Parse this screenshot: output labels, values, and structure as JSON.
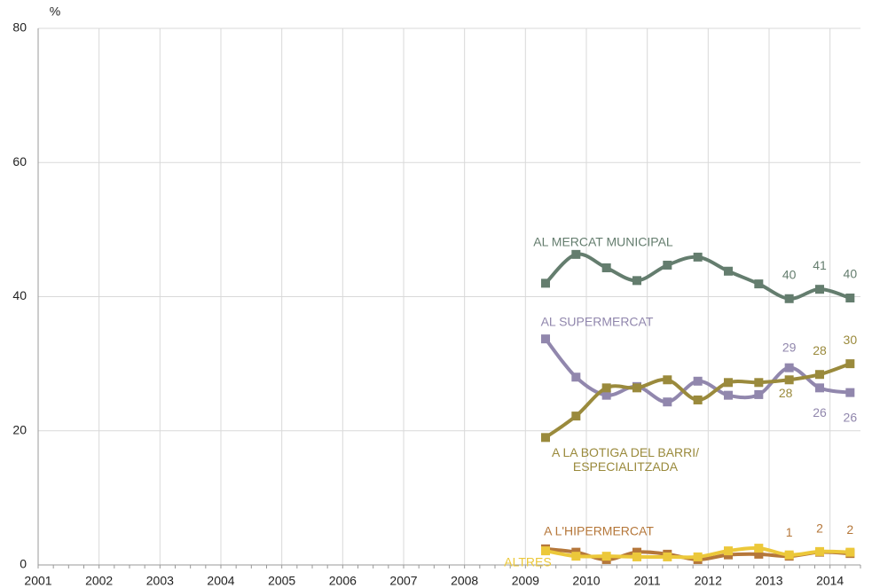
{
  "chart_data": {
    "type": "line",
    "y_label": "%",
    "x": [
      2009.33,
      2009.83,
      2010.33,
      2010.83,
      2011.33,
      2011.83,
      2012.33,
      2012.83,
      2013.33,
      2013.83,
      2014.33
    ],
    "xlim": [
      2001,
      2014.5
    ],
    "xticks": [
      2001,
      2002,
      2003,
      2004,
      2005,
      2006,
      2007,
      2008,
      2009,
      2010,
      2011,
      2012,
      2013,
      2014
    ],
    "ylim": [
      0,
      80
    ],
    "yticks": [
      0,
      20,
      40,
      60,
      80
    ],
    "grid": true,
    "series": [
      {
        "name": "AL MERCAT MUNICIPAL",
        "color": "#647d6e",
        "values": [
          42.0,
          46.3,
          44.3,
          42.4,
          44.7,
          45.9,
          43.8,
          41.9,
          39.7,
          41.1,
          39.8
        ],
        "value_labels": [
          null,
          null,
          null,
          null,
          null,
          null,
          null,
          null,
          "40",
          "41",
          "40"
        ]
      },
      {
        "name": "AL SUPERMERCAT",
        "color": "#9187ad",
        "values": [
          33.7,
          28.0,
          25.3,
          26.6,
          24.3,
          27.4,
          25.3,
          25.4,
          29.4,
          26.4,
          25.7
        ],
        "value_labels": [
          null,
          null,
          null,
          null,
          null,
          null,
          null,
          null,
          "29",
          "26",
          "26"
        ]
      },
      {
        "name": "A LA BOTIGA DEL BARRI/\nESPECIALITZADA",
        "color": "#9a8a3c",
        "values": [
          19.0,
          22.2,
          26.4,
          26.4,
          27.6,
          24.6,
          27.2,
          27.2,
          27.6,
          28.4,
          30.0
        ],
        "value_labels": [
          null,
          null,
          null,
          null,
          null,
          null,
          null,
          null,
          "28",
          "28",
          "30"
        ]
      },
      {
        "name": "A L'HIPERMERCAT",
        "color": "#b5773a",
        "values": [
          2.4,
          1.9,
          0.8,
          1.9,
          1.6,
          0.8,
          1.5,
          1.6,
          1.3,
          1.9,
          1.7
        ],
        "value_labels": [
          null,
          null,
          null,
          null,
          null,
          null,
          null,
          null,
          "1",
          "2",
          "2"
        ]
      },
      {
        "name": "ALTRES",
        "color": "#ecc83a",
        "values": [
          2.1,
          1.3,
          1.3,
          1.2,
          1.2,
          1.2,
          2.1,
          2.5,
          1.5,
          2.0,
          1.9
        ],
        "value_labels": [
          null,
          null,
          null,
          null,
          null,
          null,
          null,
          null,
          null,
          null,
          null
        ]
      }
    ]
  }
}
